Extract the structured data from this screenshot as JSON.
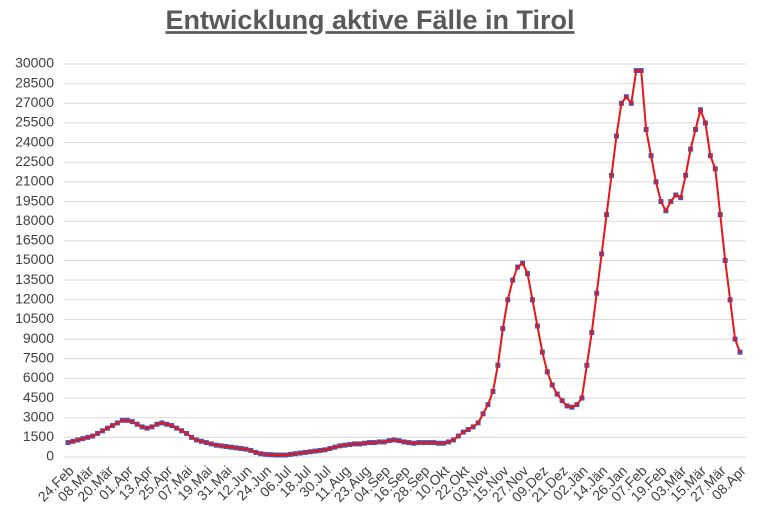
{
  "chart_data": {
    "type": "line",
    "title": "Entwicklung aktive Fälle in Tirol",
    "categories": [
      "24.Feb",
      null,
      null,
      null,
      "08.Mär",
      null,
      null,
      null,
      "20.Mär",
      null,
      null,
      null,
      "01.Apr",
      null,
      null,
      null,
      "13.Apr",
      null,
      null,
      null,
      "25.Apr",
      null,
      null,
      null,
      "07.Mai",
      null,
      null,
      null,
      "19.Mai",
      null,
      null,
      null,
      "31.Mai",
      null,
      null,
      null,
      "12.Jun",
      null,
      null,
      null,
      "24.Jun",
      null,
      null,
      null,
      "06.Jul",
      null,
      null,
      null,
      "18.Jul",
      null,
      null,
      null,
      "30.Jul",
      null,
      null,
      null,
      "11.Aug",
      null,
      null,
      null,
      "23.Aug",
      null,
      null,
      null,
      "04.Sep",
      null,
      null,
      null,
      "16.Sep",
      null,
      null,
      null,
      "28.Sep",
      null,
      null,
      null,
      "10.Okt",
      null,
      null,
      null,
      "22.Okt",
      null,
      null,
      null,
      "03.Nov",
      null,
      null,
      null,
      "15.Nov",
      null,
      null,
      null,
      "27.Nov",
      null,
      null,
      null,
      "09.Dez",
      null,
      null,
      null,
      "21.Dez",
      null,
      null,
      null,
      "02.Jän",
      null,
      null,
      null,
      "14.Jän",
      null,
      null,
      null,
      "26.Jan",
      null,
      null,
      null,
      "07.Feb",
      null,
      null,
      null,
      "19.Feb",
      null,
      null,
      null,
      "03.Mär",
      null,
      null,
      null,
      "15.Mär",
      null,
      null,
      null,
      "27.Mär",
      null,
      null,
      null,
      "08.Apr"
    ],
    "values": [
      1100,
      1200,
      1300,
      1400,
      1500,
      1600,
      1800,
      2000,
      2200,
      2400,
      2600,
      2800,
      2800,
      2700,
      2500,
      2300,
      2200,
      2300,
      2500,
      2600,
      2500,
      2400,
      2200,
      2000,
      1800,
      1500,
      1300,
      1200,
      1100,
      1000,
      900,
      850,
      800,
      750,
      700,
      650,
      600,
      500,
      350,
      250,
      200,
      180,
      150,
      150,
      150,
      200,
      250,
      300,
      350,
      400,
      450,
      500,
      550,
      650,
      750,
      850,
      900,
      950,
      1000,
      1000,
      1050,
      1100,
      1100,
      1150,
      1150,
      1250,
      1300,
      1250,
      1150,
      1100,
      1050,
      1100,
      1100,
      1100,
      1100,
      1050,
      1050,
      1150,
      1300,
      1600,
      1900,
      2100,
      2300,
      2600,
      3300,
      4000,
      5000,
      7000,
      9800,
      12000,
      13500,
      14500,
      14800,
      14000,
      12000,
      10000,
      8000,
      6500,
      5500,
      4800,
      4300,
      3900,
      3800,
      4000,
      4500,
      7000,
      9500,
      12500,
      15500,
      18500,
      21500,
      24500,
      27000,
      27500,
      27000,
      29500,
      29500,
      25000,
      23000,
      21000,
      19500,
      18800,
      19500,
      20000,
      19800,
      21500,
      23500,
      25000,
      26500,
      25500,
      23000,
      22000,
      18500,
      15000,
      12000,
      9000,
      8000
    ],
    "color": "#e8161b",
    "marker_color": "#5451a6",
    "ylim": [
      0,
      30000
    ],
    "yticks": [
      0,
      1500,
      3000,
      4500,
      6000,
      7500,
      9000,
      10500,
      12000,
      13500,
      15000,
      16500,
      18000,
      19500,
      21000,
      22500,
      24000,
      25500,
      27000,
      28500,
      30000
    ],
    "grid": true
  }
}
